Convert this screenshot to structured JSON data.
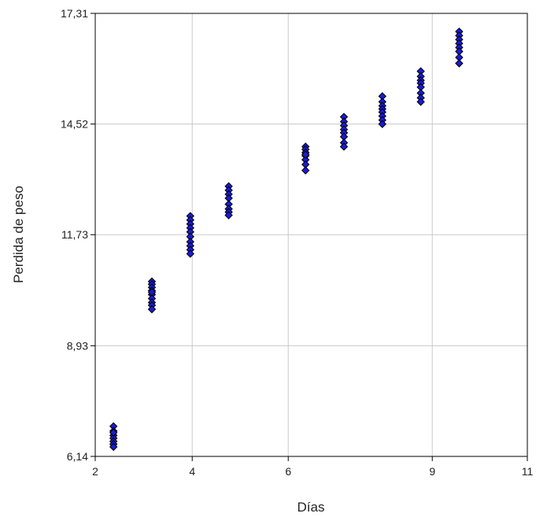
{
  "chart_data": {
    "type": "scatter",
    "xlabel": "Días",
    "ylabel": "Perdida de peso",
    "xlim": [
      2,
      11
    ],
    "ylim": [
      6.14,
      17.31
    ],
    "xticks": [
      2,
      4,
      6,
      9,
      11
    ],
    "xtick_labels": [
      "2",
      "4",
      "6",
      "9",
      "11"
    ],
    "xtick_values": [
      2.0,
      4.02,
      6.02,
      9.02,
      11.0
    ],
    "yticks": [
      6.14,
      8.93,
      11.73,
      14.52,
      17.31
    ],
    "ytick_labels": [
      "6,14",
      "8,93",
      "11,73",
      "14,52",
      "17,31"
    ],
    "grid": true,
    "marker_color": "#1a1adb",
    "marker_edge": "#000000",
    "points": [
      {
        "x": 2.38,
        "y": 6.9
      },
      {
        "x": 2.38,
        "y": 6.78
      },
      {
        "x": 2.38,
        "y": 6.67
      },
      {
        "x": 2.38,
        "y": 6.6
      },
      {
        "x": 2.38,
        "y": 6.52
      },
      {
        "x": 2.38,
        "y": 6.45
      },
      {
        "x": 2.38,
        "y": 6.38
      },
      {
        "x": 2.38,
        "y": 6.74
      },
      {
        "x": 3.18,
        "y": 10.55
      },
      {
        "x": 3.18,
        "y": 10.48
      },
      {
        "x": 3.18,
        "y": 10.4
      },
      {
        "x": 3.18,
        "y": 10.32
      },
      {
        "x": 3.18,
        "y": 10.22
      },
      {
        "x": 3.18,
        "y": 10.12
      },
      {
        "x": 3.18,
        "y": 10.02
      },
      {
        "x": 3.18,
        "y": 9.95
      },
      {
        "x": 3.18,
        "y": 9.85
      },
      {
        "x": 3.18,
        "y": 10.28
      },
      {
        "x": 3.98,
        "y": 12.2
      },
      {
        "x": 3.98,
        "y": 12.1
      },
      {
        "x": 3.98,
        "y": 12.0
      },
      {
        "x": 3.98,
        "y": 11.9
      },
      {
        "x": 3.98,
        "y": 11.8
      },
      {
        "x": 3.98,
        "y": 11.68
      },
      {
        "x": 3.98,
        "y": 11.55
      },
      {
        "x": 3.98,
        "y": 11.45
      },
      {
        "x": 3.98,
        "y": 11.35
      },
      {
        "x": 3.98,
        "y": 11.25
      },
      {
        "x": 4.78,
        "y": 12.95
      },
      {
        "x": 4.78,
        "y": 12.85
      },
      {
        "x": 4.78,
        "y": 12.75
      },
      {
        "x": 4.78,
        "y": 12.65
      },
      {
        "x": 4.78,
        "y": 12.5
      },
      {
        "x": 4.78,
        "y": 12.38
      },
      {
        "x": 4.78,
        "y": 12.3
      },
      {
        "x": 4.78,
        "y": 12.22
      },
      {
        "x": 6.38,
        "y": 13.95
      },
      {
        "x": 6.38,
        "y": 13.88
      },
      {
        "x": 6.38,
        "y": 13.8
      },
      {
        "x": 6.38,
        "y": 13.72
      },
      {
        "x": 6.38,
        "y": 13.62
      },
      {
        "x": 6.38,
        "y": 13.5
      },
      {
        "x": 6.38,
        "y": 13.35
      },
      {
        "x": 6.38,
        "y": 13.75
      },
      {
        "x": 7.18,
        "y": 14.7
      },
      {
        "x": 7.18,
        "y": 14.58
      },
      {
        "x": 7.18,
        "y": 14.48
      },
      {
        "x": 7.18,
        "y": 14.38
      },
      {
        "x": 7.18,
        "y": 14.3
      },
      {
        "x": 7.18,
        "y": 14.2
      },
      {
        "x": 7.18,
        "y": 14.05
      },
      {
        "x": 7.18,
        "y": 13.95
      },
      {
        "x": 7.98,
        "y": 15.22
      },
      {
        "x": 7.98,
        "y": 15.08
      },
      {
        "x": 7.98,
        "y": 14.98
      },
      {
        "x": 7.98,
        "y": 14.9
      },
      {
        "x": 7.98,
        "y": 14.82
      },
      {
        "x": 7.98,
        "y": 14.72
      },
      {
        "x": 7.98,
        "y": 14.62
      },
      {
        "x": 7.98,
        "y": 14.52
      },
      {
        "x": 8.78,
        "y": 15.85
      },
      {
        "x": 8.78,
        "y": 15.72
      },
      {
        "x": 8.78,
        "y": 15.62
      },
      {
        "x": 8.78,
        "y": 15.55
      },
      {
        "x": 8.78,
        "y": 15.45
      },
      {
        "x": 8.78,
        "y": 15.3
      },
      {
        "x": 8.78,
        "y": 15.18
      },
      {
        "x": 8.78,
        "y": 15.08
      },
      {
        "x": 9.58,
        "y": 16.85
      },
      {
        "x": 9.58,
        "y": 16.75
      },
      {
        "x": 9.58,
        "y": 16.65
      },
      {
        "x": 9.58,
        "y": 16.55
      },
      {
        "x": 9.58,
        "y": 16.45
      },
      {
        "x": 9.58,
        "y": 16.35
      },
      {
        "x": 9.58,
        "y": 16.2
      },
      {
        "x": 9.58,
        "y": 16.05
      }
    ]
  }
}
